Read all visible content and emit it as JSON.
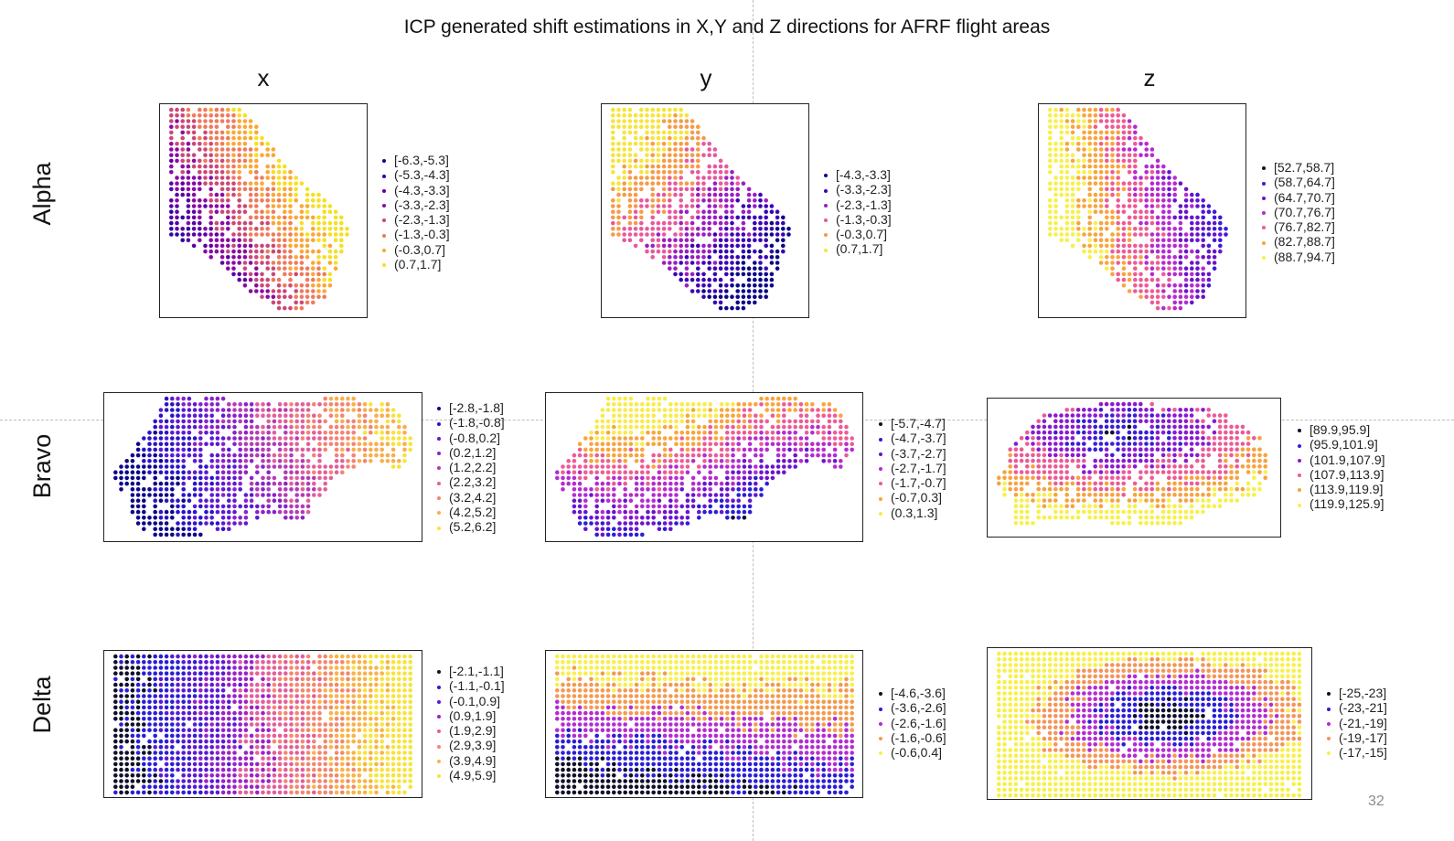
{
  "title": "ICP generated shift estimations in X,Y and Z directions for AFRF flight areas",
  "page_number": "32",
  "columns": [
    "x",
    "y",
    "z"
  ],
  "rows": [
    "Alpha",
    "Bravo",
    "Delta"
  ],
  "chart_data": [
    {
      "type": "scatter",
      "area": "Alpha",
      "direction": "x",
      "legend": [
        "[-6.3,-5.3]",
        "(-5.3,-4.3]",
        "(-4.3,-3.3]",
        "(-3.3,-2.3]",
        "(-2.3,-1.3]",
        "(-1.3,-0.3]",
        "(-0.3,0.7]",
        "(0.7,1.7]"
      ],
      "colors": [
        "#0d0887",
        "#2f04a3",
        "#5b02a3",
        "#8b0aa5",
        "#cc4778",
        "#ef7a5d",
        "#fca636",
        "#f5e021"
      ]
    },
    {
      "type": "scatter",
      "area": "Alpha",
      "direction": "y",
      "legend": [
        "[-4.3,-3.3]",
        "(-3.3,-2.3]",
        "(-2.3,-1.3]",
        "(-1.3,-0.3]",
        "(-0.3,0.7]",
        "(0.7,1.7]"
      ],
      "colors": [
        "#0d0887",
        "#3a04b5",
        "#9a1ec2",
        "#e8589c",
        "#f79a48",
        "#f5e53a"
      ]
    },
    {
      "type": "scatter",
      "area": "Alpha",
      "direction": "z",
      "legend": [
        "[52.7,58.7]",
        "(58.7,64.7]",
        "(64.7,70.7]",
        "(70.7,76.7]",
        "(76.7,82.7]",
        "(82.7,88.7]",
        "(88.7,94.7]"
      ],
      "colors": [
        "#10102a",
        "#3c1bd6",
        "#6a12cf",
        "#b62ad0",
        "#ef5a94",
        "#f9a43d",
        "#f7f04a"
      ]
    },
    {
      "type": "scatter",
      "area": "Bravo",
      "direction": "x",
      "legend": [
        "[-2.8,-1.8]",
        "(-1.8,-0.8]",
        "(-0.8,0.2]",
        "(0.2,1.2]",
        "(1.2,2.2]",
        "(2.2,3.2]",
        "(3.2,4.2]",
        "(4.2,5.2]",
        "(5.2,6.2]"
      ],
      "colors": [
        "#0d0887",
        "#2a14c8",
        "#5b1ad4",
        "#8a22c9",
        "#b43bb5",
        "#e0609a",
        "#f48373",
        "#f9ad4c",
        "#f6e43c"
      ]
    },
    {
      "type": "scatter",
      "area": "Bravo",
      "direction": "y",
      "legend": [
        "[-5.7,-4.7]",
        "(-4.7,-3.7]",
        "(-3.7,-2.7]",
        "(-2.7,-1.7]",
        "(-1.7,-0.7]",
        "(-0.7,0.3]",
        "(0.3,1.3]"
      ],
      "colors": [
        "#10102a",
        "#2a1ed6",
        "#6a14cf",
        "#b42cd0",
        "#ee5c95",
        "#f9a43d",
        "#f7ec4a"
      ]
    },
    {
      "type": "scatter",
      "area": "Bravo",
      "direction": "z",
      "legend": [
        "[89.9,95.9]",
        "(95.9,101.9]",
        "(101.9,107.9]",
        "(107.9,113.9]",
        "(113.9,119.9]",
        "(119.9,125.9]"
      ],
      "colors": [
        "#10102a",
        "#3a1ed6",
        "#8a1ad0",
        "#ec5a96",
        "#f7a23f",
        "#f7f04a"
      ]
    },
    {
      "type": "scatter",
      "area": "Delta",
      "direction": "x",
      "legend": [
        "[-2.1,-1.1]",
        "(-1.1,-0.1]",
        "(-0.1,0.9]",
        "(0.9,1.9]",
        "(1.9,2.9]",
        "(2.9,3.9]",
        "(3.9,4.9]",
        "(4.9,5.9]"
      ],
      "colors": [
        "#10102a",
        "#2a1ed6",
        "#5a1ad4",
        "#9a22c9",
        "#e35f9b",
        "#f3876f",
        "#f9b347",
        "#f6e43c"
      ]
    },
    {
      "type": "scatter",
      "area": "Delta",
      "direction": "y",
      "legend": [
        "[-4.6,-3.6]",
        "(-3.6,-2.6]",
        "(-2.6,-1.6]",
        "(-1.6,-0.6]",
        "(-0.6,0.4]"
      ],
      "colors": [
        "#10102a",
        "#2a1ed6",
        "#b42cd0",
        "#f49a50",
        "#f7f04a"
      ]
    },
    {
      "type": "scatter",
      "area": "Delta",
      "direction": "z",
      "legend": [
        "[-25,-23]",
        "(-23,-21]",
        "(-21,-19]",
        "(-19,-17]",
        "(-17,-15]"
      ],
      "colors": [
        "#10102a",
        "#2a1ed6",
        "#b42cd0",
        "#f4955a",
        "#f7f04a"
      ]
    }
  ]
}
